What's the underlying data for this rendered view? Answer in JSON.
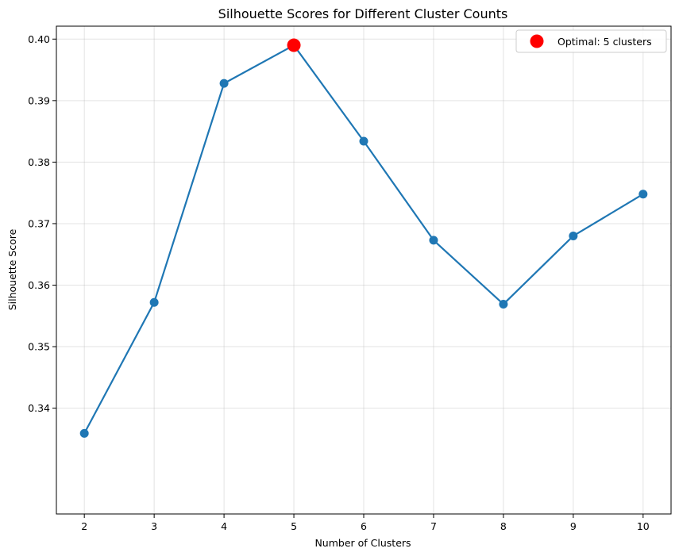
{
  "chart_data": {
    "type": "line",
    "title": "Silhouette Scores for Different Cluster Counts",
    "xlabel": "Number of Clusters",
    "ylabel": "Silhouette Score",
    "x": [
      2,
      3,
      4,
      5,
      6,
      7,
      8,
      9,
      10
    ],
    "series": [
      {
        "values": [
          0.3359,
          0.3572,
          0.3928,
          0.399,
          0.3834,
          0.3673,
          0.3569,
          0.368,
          0.3748
        ],
        "color": "#1f77b4"
      }
    ],
    "highlight": {
      "label": "Optimal: 5 clusters",
      "x": 5,
      "y": 0.399,
      "color": "#ff0000"
    },
    "xlim": [
      1.6,
      10.4
    ],
    "ylim": [
      0.3228,
      0.4021
    ],
    "xticks": [
      "2",
      "3",
      "4",
      "5",
      "6",
      "7",
      "8",
      "9",
      "10"
    ],
    "yticks": [
      "0.34",
      "0.35",
      "0.36",
      "0.37",
      "0.38",
      "0.39",
      "0.40"
    ],
    "grid": true,
    "legend_position": "top-right"
  }
}
